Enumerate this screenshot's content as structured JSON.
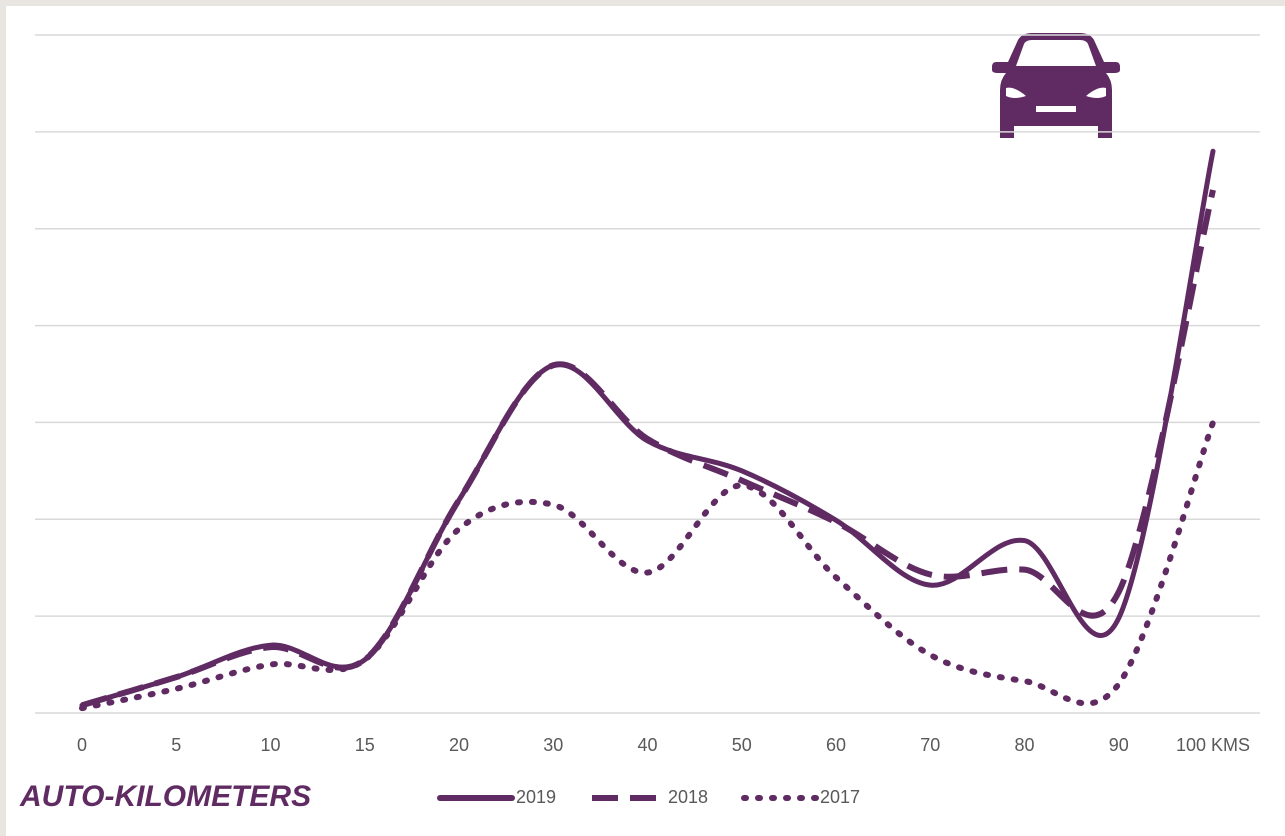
{
  "chart_data": {
    "type": "line",
    "title": "AUTO-KILOMETERS",
    "categories": [
      "0",
      "5",
      "10",
      "15",
      "20",
      "30",
      "40",
      "50",
      "60",
      "70",
      "80",
      "90",
      "100 KMS"
    ],
    "series": [
      {
        "name": "2019",
        "color": "#5f2b62",
        "style": "solid",
        "values": [
          0.08,
          0.37,
          0.7,
          0.55,
          2.2,
          3.59,
          2.81,
          2.5,
          1.99,
          1.32,
          1.78,
          0.98,
          5.8
        ]
      },
      {
        "name": "2018",
        "color": "#5f2b62",
        "style": "dashed",
        "values": [
          0.08,
          0.37,
          0.68,
          0.55,
          2.2,
          3.59,
          2.83,
          2.4,
          1.97,
          1.43,
          1.48,
          1.25,
          5.4
        ]
      },
      {
        "name": "2017",
        "color": "#5f2b62",
        "style": "dotted",
        "values": [
          0.05,
          0.25,
          0.5,
          0.55,
          1.9,
          2.15,
          1.45,
          2.35,
          1.4,
          0.6,
          0.33,
          0.3,
          3.0
        ]
      }
    ],
    "ylim": [
      0,
      7
    ],
    "yticks": [
      0,
      1,
      2,
      3,
      4,
      5,
      6,
      7
    ],
    "grid": true,
    "legend": "bottom"
  }
}
